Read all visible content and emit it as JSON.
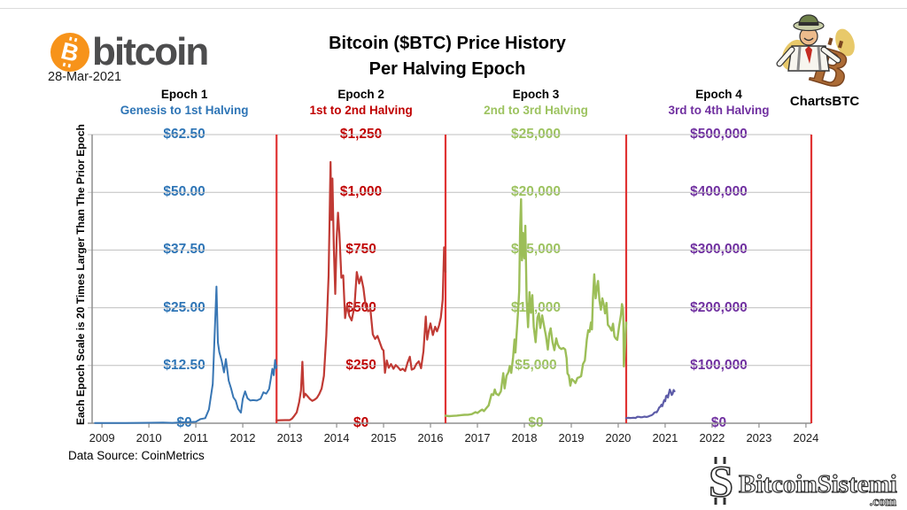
{
  "branding": {
    "bitcoin_wordmark": "bitcoin",
    "bitcoin_symbol": "B",
    "date": "28-Mar-2021",
    "chartsbtc": "ChartsBTC"
  },
  "title": {
    "line1": "Bitcoin ($BTC) Price History",
    "line2": "Per Halving Epoch"
  },
  "footer": {
    "data_source": "Data Source: CoinMetrics",
    "watermark_symbol": "S",
    "watermark_brand": "BitcoinSistemi",
    "watermark_tld": ".com"
  },
  "chart_data": {
    "type": "line",
    "title": "Bitcoin ($BTC) Price History Per Halving Epoch",
    "xlabel": "",
    "ylabel": "",
    "axis_note": "Each Epoch Scale is 20 Times Larger Than The Prior Epoch",
    "grid": true,
    "grid_color": "#BFBFBF",
    "axis_color": "#8F8F8F",
    "divider_color": "#E03333",
    "x_tick_labels": [
      "2009",
      "2010",
      "2011",
      "2012",
      "2013",
      "2014",
      "2015",
      "2016",
      "2017",
      "2018",
      "2019",
      "2020",
      "2021",
      "2022",
      "2023",
      "2024"
    ],
    "x_axis_years": {
      "start": 2008.79,
      "end": 2024.115
    },
    "dividers_year": [
      2012.72,
      2016.32,
      2020.17,
      2024.115
    ],
    "epochs": [
      {
        "name": "Epoch 1",
        "subtitle": "Genesis to 1st Halving",
        "color": "#3876B4",
        "label_color": "#2E75B6",
        "stroke_width": 2,
        "ylim": [
          0,
          62.5
        ],
        "y_tick_labels": [
          "$62.50",
          "$50.00",
          "$37.50",
          "$25.00",
          "$12.50",
          "$0"
        ],
        "points": [
          [
            2008.85,
            0.05
          ],
          [
            2009.5,
            0.05
          ],
          [
            2010.0,
            0.1
          ],
          [
            2010.3,
            0.15
          ],
          [
            2010.5,
            0.07
          ],
          [
            2010.7,
            0.2
          ],
          [
            2010.85,
            0.25
          ],
          [
            2011.0,
            0.3
          ],
          [
            2011.1,
            0.9
          ],
          [
            2011.2,
            1.1
          ],
          [
            2011.28,
            3.0
          ],
          [
            2011.36,
            8.5
          ],
          [
            2011.44,
            29.6
          ],
          [
            2011.47,
            17.5
          ],
          [
            2011.5,
            15.4
          ],
          [
            2011.55,
            13.6
          ],
          [
            2011.6,
            11.0
          ],
          [
            2011.64,
            13.9
          ],
          [
            2011.7,
            9.2
          ],
          [
            2011.75,
            7.6
          ],
          [
            2011.8,
            5.6
          ],
          [
            2011.85,
            4.9
          ],
          [
            2011.9,
            3.1
          ],
          [
            2011.96,
            2.3
          ],
          [
            2012.0,
            5.3
          ],
          [
            2012.05,
            6.9
          ],
          [
            2012.1,
            5.4
          ],
          [
            2012.16,
            4.9
          ],
          [
            2012.22,
            5.0
          ],
          [
            2012.3,
            4.9
          ],
          [
            2012.38,
            5.3
          ],
          [
            2012.44,
            6.7
          ],
          [
            2012.5,
            6.4
          ],
          [
            2012.56,
            7.4
          ],
          [
            2012.6,
            9.8
          ],
          [
            2012.63,
            11.8
          ],
          [
            2012.66,
            10.4
          ],
          [
            2012.69,
            13.7
          ],
          [
            2012.71,
            11.9
          ],
          [
            2012.72,
            12.4
          ]
        ]
      },
      {
        "name": "Epoch 2",
        "subtitle": "1st to 2nd Halving",
        "color": "#C03A34",
        "label_color": "#C00000",
        "stroke_width": 2.2,
        "ylim": [
          0,
          1250
        ],
        "y_tick_labels": [
          "$1,250",
          "$1,000",
          "$750",
          "$500",
          "$250",
          "$0"
        ],
        "points": [
          [
            2012.72,
            12.4
          ],
          [
            2012.8,
            13.2
          ],
          [
            2012.9,
            13.4
          ],
          [
            2013.0,
            13.5
          ],
          [
            2013.05,
            20
          ],
          [
            2013.1,
            33
          ],
          [
            2013.15,
            47
          ],
          [
            2013.2,
            90
          ],
          [
            2013.24,
            142
          ],
          [
            2013.27,
            266
          ],
          [
            2013.3,
            112
          ],
          [
            2013.33,
            128
          ],
          [
            2013.38,
            117
          ],
          [
            2013.43,
            105
          ],
          [
            2013.48,
            97
          ],
          [
            2013.53,
            102
          ],
          [
            2013.58,
            110
          ],
          [
            2013.63,
            126
          ],
          [
            2013.68,
            150
          ],
          [
            2013.73,
            205
          ],
          [
            2013.78,
            380
          ],
          [
            2013.83,
            640
          ],
          [
            2013.87,
            1131
          ],
          [
            2013.89,
            880
          ],
          [
            2013.91,
            1060
          ],
          [
            2013.94,
            760
          ],
          [
            2013.97,
            560
          ],
          [
            2014.0,
            800
          ],
          [
            2014.03,
            912
          ],
          [
            2014.06,
            820
          ],
          [
            2014.1,
            630
          ],
          [
            2014.14,
            640
          ],
          [
            2014.18,
            455
          ],
          [
            2014.22,
            510
          ],
          [
            2014.27,
            465
          ],
          [
            2014.32,
            445
          ],
          [
            2014.38,
            505
          ],
          [
            2014.43,
            655
          ],
          [
            2014.48,
            605
          ],
          [
            2014.52,
            635
          ],
          [
            2014.57,
            585
          ],
          [
            2014.62,
            505
          ],
          [
            2014.67,
            485
          ],
          [
            2014.72,
            492
          ],
          [
            2014.77,
            385
          ],
          [
            2014.82,
            365
          ],
          [
            2014.87,
            378
          ],
          [
            2014.92,
            350
          ],
          [
            2014.97,
            322
          ],
          [
            2015.0,
            315
          ],
          [
            2015.03,
            218
          ],
          [
            2015.07,
            272
          ],
          [
            2015.11,
            240
          ],
          [
            2015.16,
            256
          ],
          [
            2015.21,
            236
          ],
          [
            2015.26,
            252
          ],
          [
            2015.31,
            242
          ],
          [
            2015.36,
            230
          ],
          [
            2015.41,
            236
          ],
          [
            2015.46,
            226
          ],
          [
            2015.51,
            262
          ],
          [
            2015.56,
            288
          ],
          [
            2015.6,
            232
          ],
          [
            2015.65,
            237
          ],
          [
            2015.7,
            257
          ],
          [
            2015.75,
            268
          ],
          [
            2015.8,
            238
          ],
          [
            2015.85,
            312
          ],
          [
            2015.9,
            462
          ],
          [
            2015.93,
            362
          ],
          [
            2015.96,
            398
          ],
          [
            2016.0,
            432
          ],
          [
            2016.05,
            382
          ],
          [
            2016.1,
            418
          ],
          [
            2016.14,
            398
          ],
          [
            2016.18,
            422
          ],
          [
            2016.22,
            458
          ],
          [
            2016.26,
            535
          ],
          [
            2016.29,
            762
          ],
          [
            2016.32,
            655
          ]
        ]
      },
      {
        "name": "Epoch 3",
        "subtitle": "2nd to 3rd Halving",
        "color": "#9CBE58",
        "label_color": "#9DC360",
        "stroke_width": 2.4,
        "ylim": [
          0,
          25000
        ],
        "y_tick_labels": [
          "$25,000",
          "$20,000",
          "$15,000",
          "$10,000",
          "$5,000",
          "$0"
        ],
        "points": [
          [
            2016.32,
            655
          ],
          [
            2016.4,
            612
          ],
          [
            2016.48,
            640
          ],
          [
            2016.56,
            662
          ],
          [
            2016.64,
            700
          ],
          [
            2016.72,
            728
          ],
          [
            2016.8,
            740
          ],
          [
            2016.88,
            792
          ],
          [
            2016.96,
            963
          ],
          [
            2017.0,
            890
          ],
          [
            2017.05,
            1052
          ],
          [
            2017.1,
            1180
          ],
          [
            2017.14,
            1050
          ],
          [
            2017.18,
            1255
          ],
          [
            2017.24,
            1550
          ],
          [
            2017.3,
            2510
          ],
          [
            2017.34,
            2450
          ],
          [
            2017.37,
            2920
          ],
          [
            2017.4,
            2550
          ],
          [
            2017.45,
            2420
          ],
          [
            2017.5,
            2760
          ],
          [
            2017.55,
            4330
          ],
          [
            2017.58,
            3010
          ],
          [
            2017.62,
            4120
          ],
          [
            2017.66,
            4420
          ],
          [
            2017.69,
            4960
          ],
          [
            2017.72,
            4360
          ],
          [
            2017.76,
            5720
          ],
          [
            2017.79,
            7250
          ],
          [
            2017.81,
            6120
          ],
          [
            2017.84,
            8040
          ],
          [
            2017.87,
            9920
          ],
          [
            2017.89,
            11500
          ],
          [
            2017.91,
            16850
          ],
          [
            2017.93,
            19400
          ],
          [
            2017.95,
            14100
          ],
          [
            2017.97,
            16480
          ],
          [
            2018.0,
            14290
          ],
          [
            2018.02,
            17100
          ],
          [
            2018.05,
            10600
          ],
          [
            2018.08,
            8320
          ],
          [
            2018.11,
            11350
          ],
          [
            2018.14,
            9560
          ],
          [
            2018.17,
            11100
          ],
          [
            2018.2,
            8350
          ],
          [
            2018.24,
            7020
          ],
          [
            2018.28,
            9150
          ],
          [
            2018.31,
            9520
          ],
          [
            2018.34,
            8250
          ],
          [
            2018.38,
            9340
          ],
          [
            2018.42,
            8450
          ],
          [
            2018.46,
            7550
          ],
          [
            2018.5,
            6380
          ],
          [
            2018.53,
            7720
          ],
          [
            2018.56,
            8220
          ],
          [
            2018.6,
            7030
          ],
          [
            2018.64,
            6330
          ],
          [
            2018.68,
            7350
          ],
          [
            2018.71,
            6840
          ],
          [
            2018.75,
            6530
          ],
          [
            2018.79,
            6430
          ],
          [
            2018.83,
            6520
          ],
          [
            2018.87,
            6390
          ],
          [
            2018.9,
            5620
          ],
          [
            2018.92,
            4320
          ],
          [
            2018.95,
            4120
          ],
          [
            2018.98,
            3250
          ],
          [
            2019.01,
            3820
          ],
          [
            2019.05,
            3680
          ],
          [
            2019.09,
            3480
          ],
          [
            2019.13,
            3920
          ],
          [
            2019.17,
            3980
          ],
          [
            2019.21,
            4080
          ],
          [
            2019.25,
            5120
          ],
          [
            2019.29,
            5430
          ],
          [
            2019.33,
            7250
          ],
          [
            2019.36,
            8050
          ],
          [
            2019.39,
            7920
          ],
          [
            2019.42,
            8730
          ],
          [
            2019.44,
            8120
          ],
          [
            2019.46,
            10750
          ],
          [
            2019.49,
            12900
          ],
          [
            2019.52,
            10820
          ],
          [
            2019.55,
            11830
          ],
          [
            2019.57,
            12320
          ],
          [
            2019.6,
            10620
          ],
          [
            2019.63,
            9830
          ],
          [
            2019.66,
            10820
          ],
          [
            2019.69,
            10330
          ],
          [
            2019.72,
            9520
          ],
          [
            2019.75,
            10420
          ],
          [
            2019.78,
            8520
          ],
          [
            2019.82,
            8320
          ],
          [
            2019.86,
            8020
          ],
          [
            2019.89,
            8620
          ],
          [
            2019.92,
            7520
          ],
          [
            2019.95,
            7320
          ],
          [
            2019.98,
            7220
          ],
          [
            2020.02,
            8420
          ],
          [
            2020.04,
            8920
          ],
          [
            2020.06,
            9420
          ],
          [
            2020.08,
            10320
          ],
          [
            2020.1,
            9920
          ],
          [
            2020.11,
            8820
          ],
          [
            2020.12,
            4920
          ],
          [
            2020.13,
            5620
          ],
          [
            2020.14,
            6250
          ],
          [
            2020.15,
            6850
          ],
          [
            2020.16,
            7820
          ],
          [
            2020.17,
            8720
          ]
        ]
      },
      {
        "name": "Epoch 4",
        "subtitle": "3rd to 4th Halving",
        "color": "#5D5CA8",
        "label_color": "#7030A0",
        "stroke_width": 2.2,
        "ylim": [
          0,
          500000
        ],
        "y_tick_labels": [
          "$500,000",
          "$400,000",
          "$300,000",
          "$200,000",
          "$100,000",
          "$0"
        ],
        "points": [
          [
            2020.17,
            8720
          ],
          [
            2020.21,
            9420
          ],
          [
            2020.25,
            9020
          ],
          [
            2020.29,
            9150
          ],
          [
            2020.33,
            9520
          ],
          [
            2020.37,
            9120
          ],
          [
            2020.41,
            11250
          ],
          [
            2020.45,
            11020
          ],
          [
            2020.48,
            10220
          ],
          [
            2020.52,
            10550
          ],
          [
            2020.56,
            11520
          ],
          [
            2020.6,
            10820
          ],
          [
            2020.64,
            11720
          ],
          [
            2020.68,
            13050
          ],
          [
            2020.71,
            13850
          ],
          [
            2020.74,
            15550
          ],
          [
            2020.77,
            18350
          ],
          [
            2020.8,
            19250
          ],
          [
            2020.82,
            18850
          ],
          [
            2020.85,
            23050
          ],
          [
            2020.87,
            27050
          ],
          [
            2020.9,
            29050
          ],
          [
            2020.92,
            32050
          ],
          [
            2020.94,
            29550
          ],
          [
            2020.96,
            35050
          ],
          [
            2020.98,
            40050
          ],
          [
            2021.0,
            38050
          ],
          [
            2021.02,
            47050
          ],
          [
            2021.04,
            48120
          ],
          [
            2021.06,
            44550
          ],
          [
            2021.08,
            52120
          ],
          [
            2021.1,
            58350
          ],
          [
            2021.12,
            54120
          ],
          [
            2021.14,
            48950
          ],
          [
            2021.16,
            51120
          ],
          [
            2021.18,
            57550
          ],
          [
            2021.2,
            55320
          ]
        ]
      }
    ]
  }
}
